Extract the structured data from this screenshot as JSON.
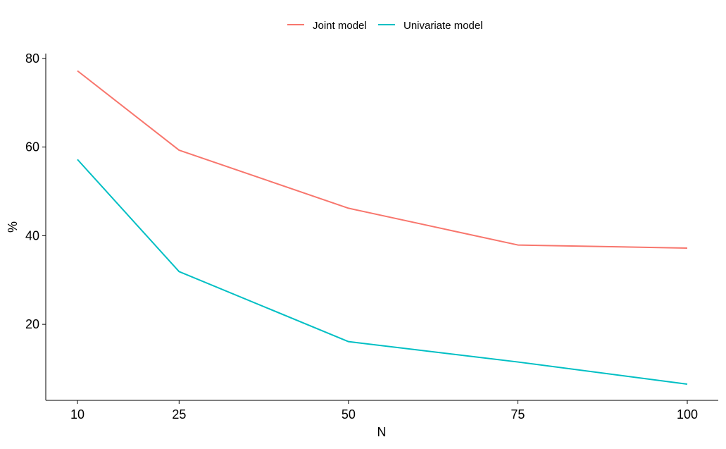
{
  "chart_data": {
    "type": "line",
    "xlabel": "N",
    "ylabel": "%",
    "x": [
      10,
      25,
      50,
      75,
      100
    ],
    "x_ticks": [
      "10",
      "25",
      "50",
      "75",
      "100"
    ],
    "y_ticks": [
      "20",
      "40",
      "60",
      "80"
    ],
    "xlim": [
      10,
      100
    ],
    "ylim": [
      6.5,
      77.2
    ],
    "grid": false,
    "legend_position": "top",
    "series": [
      {
        "name": "Joint model",
        "color": "#F8766D",
        "values": [
          77.2,
          59.3,
          46.2,
          37.9,
          37.2
        ]
      },
      {
        "name": "Univariate model",
        "color": "#00BFC4",
        "values": [
          57.2,
          31.9,
          16.1,
          11.5,
          6.5
        ]
      }
    ]
  }
}
